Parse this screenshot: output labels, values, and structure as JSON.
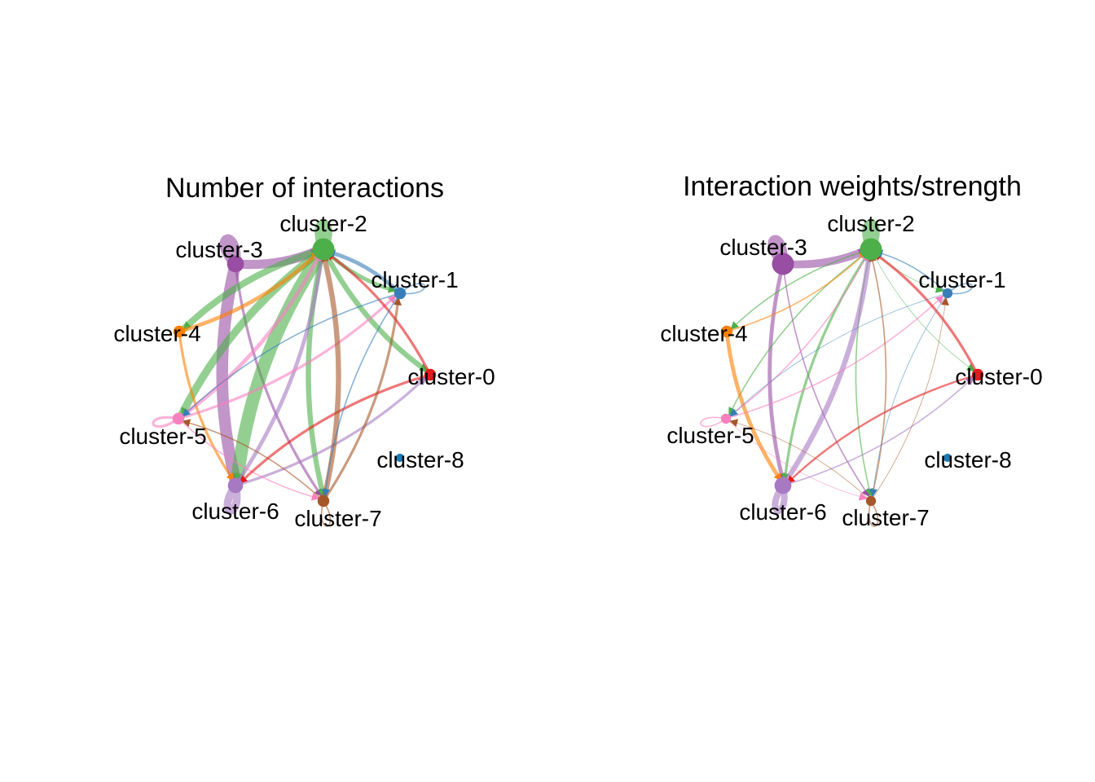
{
  "panels": [
    {
      "title": "Number of interactions",
      "nodes": [
        {
          "id": "cluster-0",
          "label": "cluster-0",
          "color": "#e41a1c",
          "size": 2
        },
        {
          "id": "cluster-1",
          "label": "cluster-1",
          "color": "#377eb8",
          "size": 2
        },
        {
          "id": "cluster-2",
          "label": "cluster-2",
          "color": "#4daf4a",
          "size": 5
        },
        {
          "id": "cluster-3",
          "label": "cluster-3",
          "color": "#984ea3",
          "size": 3.5
        },
        {
          "id": "cluster-4",
          "label": "cluster-4",
          "color": "#ff7f00",
          "size": 2
        },
        {
          "id": "cluster-5",
          "label": "cluster-5",
          "color": "#f781bf",
          "size": 2
        },
        {
          "id": "cluster-6",
          "label": "cluster-6",
          "color": "#a679c2",
          "size": 3
        },
        {
          "id": "cluster-7",
          "label": "cluster-7",
          "color": "#a65628",
          "size": 2
        },
        {
          "id": "cluster-8",
          "label": "cluster-8",
          "color": "#1f78b4",
          "size": 1
        }
      ]
    },
    {
      "title": "Interaction weights/strength",
      "nodes": [
        {
          "id": "cluster-0",
          "label": "cluster-0",
          "color": "#e41a1c",
          "size": 2
        },
        {
          "id": "cluster-1",
          "label": "cluster-1",
          "color": "#377eb8",
          "size": 1.5
        },
        {
          "id": "cluster-2",
          "label": "cluster-2",
          "color": "#4daf4a",
          "size": 5
        },
        {
          "id": "cluster-3",
          "label": "cluster-3",
          "color": "#984ea3",
          "size": 5
        },
        {
          "id": "cluster-4",
          "label": "cluster-4",
          "color": "#ff7f00",
          "size": 2
        },
        {
          "id": "cluster-5",
          "label": "cluster-5",
          "color": "#f781bf",
          "size": 1.5
        },
        {
          "id": "cluster-6",
          "label": "cluster-6",
          "color": "#a679c2",
          "size": 3.5
        },
        {
          "id": "cluster-7",
          "label": "cluster-7",
          "color": "#a65628",
          "size": 1.5
        },
        {
          "id": "cluster-8",
          "label": "cluster-8",
          "color": "#1f78b4",
          "size": 1
        }
      ]
    }
  ],
  "edges": [
    {
      "from": "cluster-3",
      "to": "cluster-3",
      "w1": 8,
      "w2": 7
    },
    {
      "from": "cluster-2",
      "to": "cluster-2",
      "w1": 7,
      "w2": 7
    },
    {
      "from": "cluster-1",
      "to": "cluster-1",
      "w1": 1,
      "w2": 1
    },
    {
      "from": "cluster-5",
      "to": "cluster-5",
      "w1": 2,
      "w2": 1
    },
    {
      "from": "cluster-6",
      "to": "cluster-6",
      "w1": 6,
      "w2": 5
    },
    {
      "from": "cluster-7",
      "to": "cluster-7",
      "w1": 1,
      "w2": 1
    },
    {
      "from": "cluster-3",
      "to": "cluster-2",
      "w1": 7,
      "w2": 6
    },
    {
      "from": "cluster-3",
      "to": "cluster-6",
      "w1": 9,
      "w2": 3
    },
    {
      "from": "cluster-3",
      "to": "cluster-7",
      "w1": 2,
      "w2": 1
    },
    {
      "from": "cluster-2",
      "to": "cluster-6",
      "w1": 10,
      "w2": 2
    },
    {
      "from": "cluster-2",
      "to": "cluster-5",
      "w1": 6,
      "w2": 1
    },
    {
      "from": "cluster-2",
      "to": "cluster-4",
      "w1": 5,
      "w2": 1
    },
    {
      "from": "cluster-2",
      "to": "cluster-7",
      "w1": 4,
      "w2": 1
    },
    {
      "from": "cluster-2",
      "to": "cluster-0",
      "w1": 4,
      "w2": 0.5
    },
    {
      "from": "cluster-2",
      "to": "cluster-1",
      "w1": 3,
      "w2": 0.5
    },
    {
      "from": "cluster-4",
      "to": "cluster-2",
      "w1": 3,
      "w2": 1
    },
    {
      "from": "cluster-4",
      "to": "cluster-6",
      "w1": 2,
      "w2": 3
    },
    {
      "from": "cluster-6",
      "to": "cluster-2",
      "w1": 3,
      "w2": 4
    },
    {
      "from": "cluster-6",
      "to": "cluster-0",
      "w1": 2,
      "w2": 1
    },
    {
      "from": "cluster-5",
      "to": "cluster-2",
      "w1": 3,
      "w2": 1
    },
    {
      "from": "cluster-5",
      "to": "cluster-1",
      "w1": 2,
      "w2": 1
    },
    {
      "from": "cluster-5",
      "to": "cluster-7",
      "w1": 1,
      "w2": 0.5
    },
    {
      "from": "cluster-0",
      "to": "cluster-2",
      "w1": 2,
      "w2": 2
    },
    {
      "from": "cluster-0",
      "to": "cluster-6",
      "w1": 2,
      "w2": 1.5
    },
    {
      "from": "cluster-7",
      "to": "cluster-2",
      "w1": 4,
      "w2": 1
    },
    {
      "from": "cluster-7",
      "to": "cluster-5",
      "w1": 1,
      "w2": 0.5
    },
    {
      "from": "cluster-7",
      "to": "cluster-1",
      "w1": 2,
      "w2": 0.5
    },
    {
      "from": "cluster-1",
      "to": "cluster-2",
      "w1": 3,
      "w2": 1
    },
    {
      "from": "cluster-1",
      "to": "cluster-5",
      "w1": 1,
      "w2": 0.5
    },
    {
      "from": "cluster-1",
      "to": "cluster-7",
      "w1": 1,
      "w2": 0.5
    }
  ]
}
